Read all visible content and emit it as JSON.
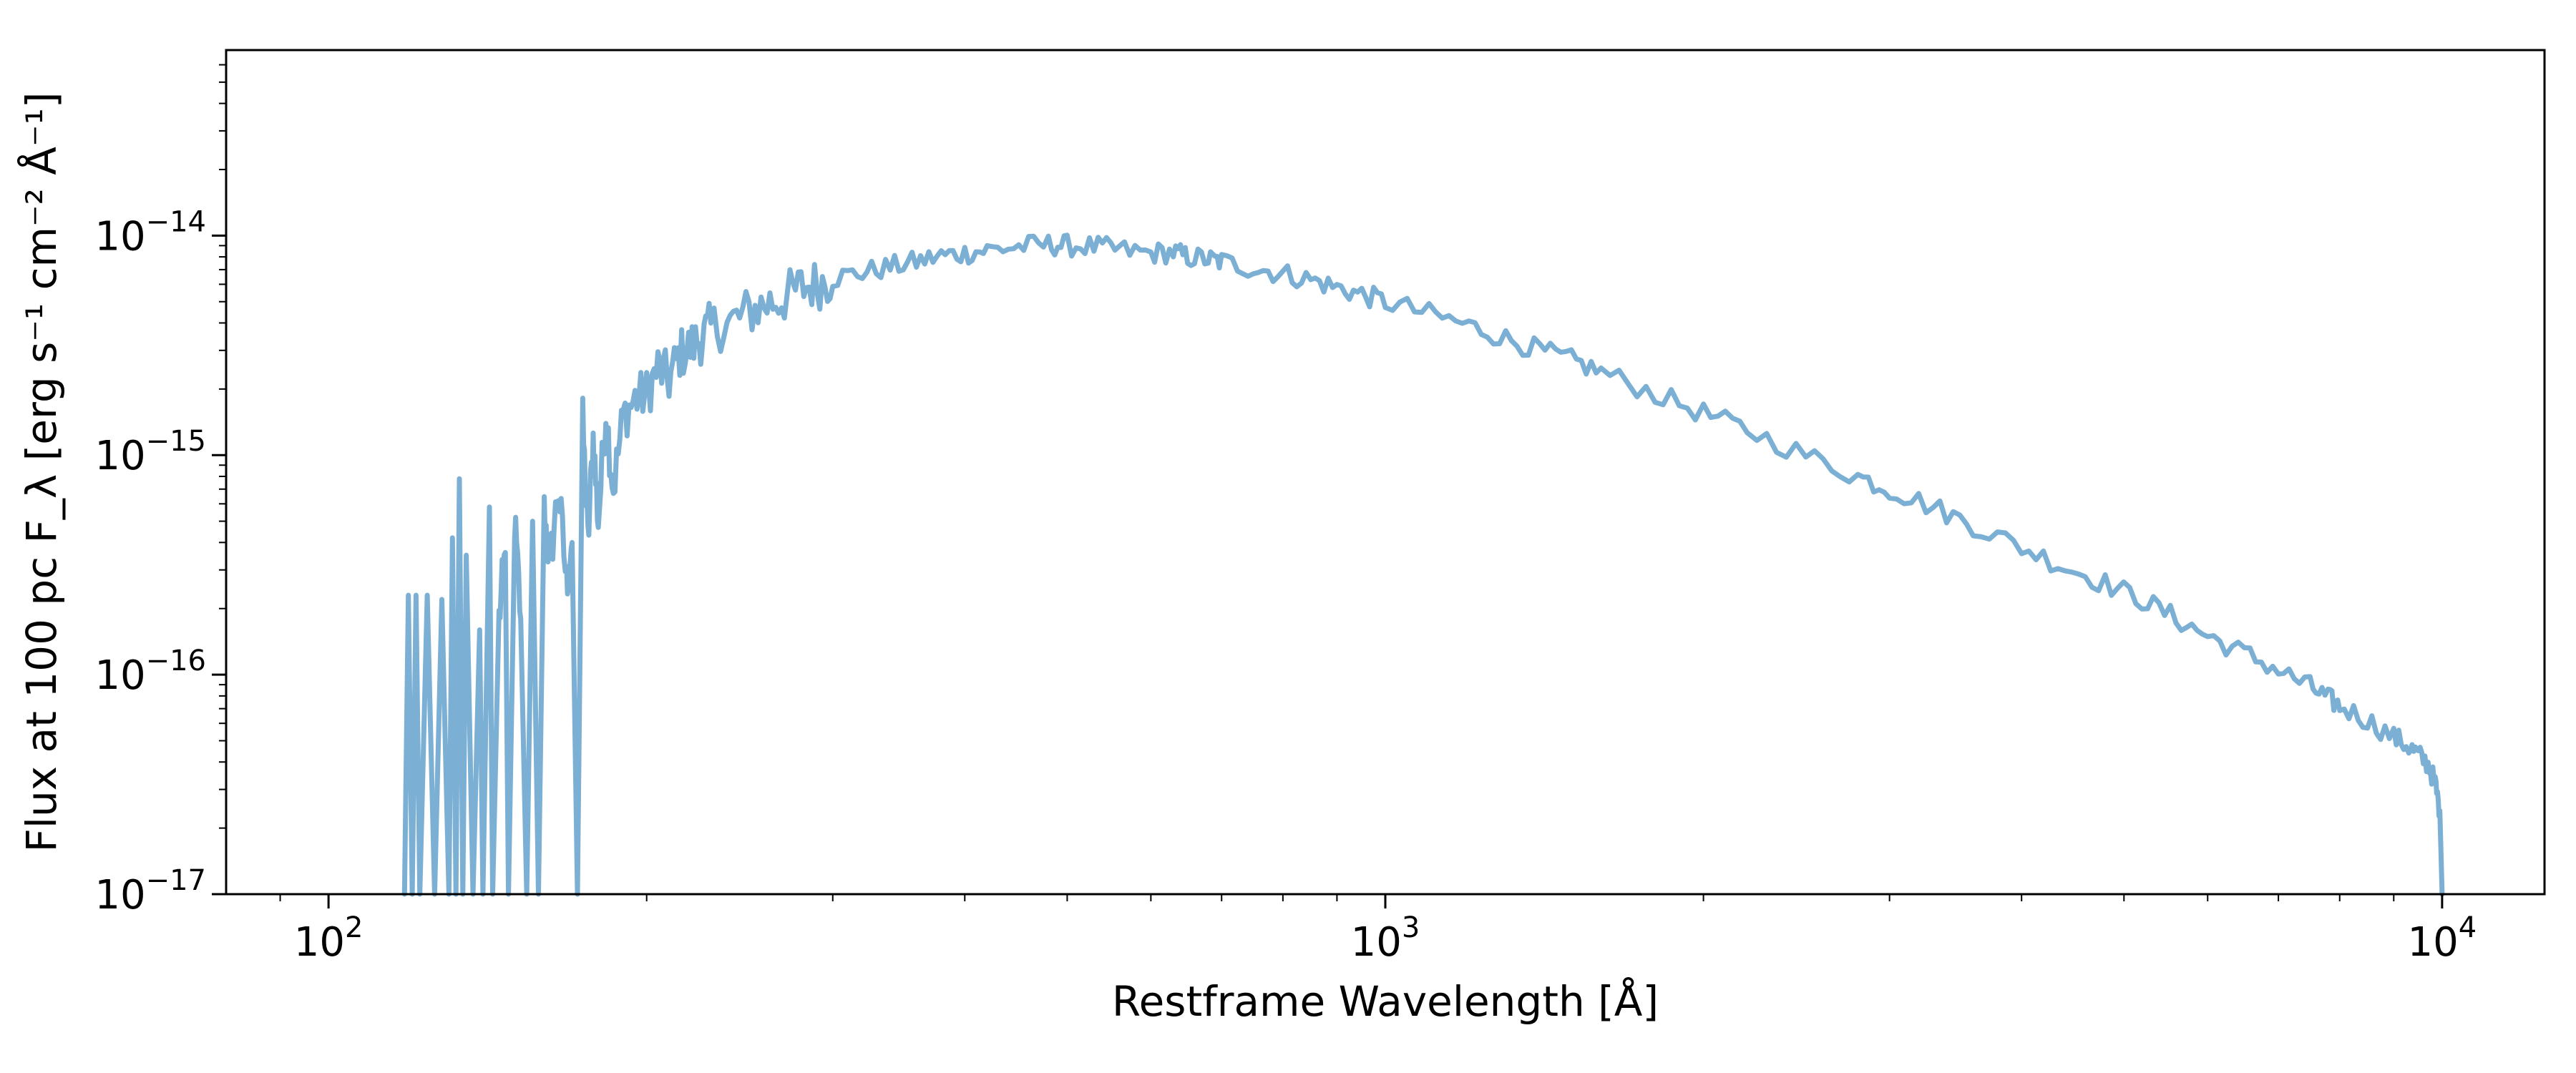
{
  "chart_data": {
    "type": "line",
    "title": "",
    "xlabel": "Restframe Wavelength [Å]",
    "ylabel": "Flux at 100 pc F_λ [erg s⁻¹ cm⁻² Å⁻¹]",
    "x_scale": "log",
    "y_scale": "log",
    "xlim": [
      80,
      12500
    ],
    "ylim": [
      1e-17,
      7e-14
    ],
    "grid": false,
    "legend": "none",
    "x_ticks": [
      {
        "value": 100,
        "label": "10",
        "exp": "2"
      },
      {
        "value": 1000,
        "label": "10",
        "exp": "3"
      },
      {
        "value": 10000,
        "label": "10",
        "exp": "4"
      }
    ],
    "y_ticks": [
      {
        "value": 1e-17,
        "label": "10",
        "exp": "−17"
      },
      {
        "value": 1e-16,
        "label": "10",
        "exp": "−16"
      },
      {
        "value": 1e-15,
        "label": "10",
        "exp": "−15"
      },
      {
        "value": 1e-14,
        "label": "10",
        "exp": "−14"
      }
    ],
    "series": [
      {
        "color": "#7bafd4",
        "x": [
          118,
          119,
          120,
          121,
          122,
          124,
          126,
          128,
          130,
          131,
          132,
          133,
          134,
          135,
          137,
          139,
          140,
          142,
          143,
          145,
          147,
          148,
          150,
          152,
          154,
          156,
          158,
          160,
          162,
          165,
          168,
          170,
          172,
          174,
          176,
          178,
          180,
          183,
          186,
          190,
          195,
          200,
          205,
          210,
          215,
          220,
          225,
          230,
          240,
          250,
          260,
          270,
          280,
          290,
          300,
          320,
          340,
          360,
          380,
          400,
          420,
          450,
          480,
          500,
          530,
          560,
          600,
          630,
          650,
          680,
          700,
          750,
          800,
          850,
          900,
          950,
          1000,
          1100,
          1200,
          1300,
          1400,
          1500,
          1600,
          1800,
          2000,
          2200,
          2500,
          2800,
          3000,
          3300,
          3600,
          4000,
          4400,
          4800,
          5200,
          5600,
          6000,
          6500,
          7000,
          7500,
          7800,
          8000,
          8500,
          9000,
          9300,
          9500,
          9700,
          9850,
          9950,
          10000
        ],
        "y": [
          1e-17,
          2.3e-16,
          1e-17,
          2.3e-16,
          1e-17,
          2.3e-16,
          1e-17,
          2.2e-16,
          1e-17,
          4.2e-16,
          1e-17,
          7.8e-16,
          1e-17,
          3.5e-16,
          1e-17,
          1.6e-16,
          1e-17,
          5.8e-16,
          1e-17,
          1.8e-16,
          3.6e-16,
          1e-17,
          5e-16,
          1.8e-16,
          1e-17,
          5e-16,
          1e-17,
          5.5e-16,
          3.2e-16,
          7e-16,
          2.6e-16,
          4e-16,
          1e-17,
          1.4e-15,
          4e-16,
          1.2e-15,
          5e-16,
          1.6e-15,
          7e-16,
          1.5e-15,
          1.8e-15,
          1.9e-15,
          2.5e-15,
          2.2e-15,
          2.9e-15,
          3.1e-15,
          3.4e-15,
          3.8e-15,
          4e-15,
          4.5e-15,
          4.9e-15,
          5.2e-15,
          5.8e-15,
          6e-15,
          6.4e-15,
          6.8e-15,
          7.2e-15,
          7.6e-15,
          8.1e-15,
          8.3e-15,
          8.6e-15,
          8.9e-15,
          9.1e-15,
          9e-15,
          8.9e-15,
          8.6e-15,
          8.3e-15,
          8.4e-15,
          8e-15,
          7.8e-15,
          7.6e-15,
          7.1e-15,
          6.7e-15,
          6.3e-15,
          5.8e-15,
          5.4e-15,
          5e-15,
          4.4e-15,
          3.9e-15,
          3.4e-15,
          3e-15,
          2.7e-15,
          2.4e-15,
          1.9e-15,
          1.55e-15,
          1.3e-15,
          1e-15,
          8e-16,
          7e-16,
          5.8e-16,
          4.8e-16,
          3.8e-16,
          3.1e-16,
          2.6e-16,
          2.2e-16,
          1.8e-16,
          1.5e-16,
          1.25e-16,
          1.05e-16,
          8.8e-17,
          7.8e-17,
          7.2e-17,
          6.2e-17,
          5.2e-17,
          4.7e-17,
          4.3e-17,
          3.9e-17,
          3.2e-17,
          2.4e-17,
          1e-17
        ]
      }
    ]
  }
}
